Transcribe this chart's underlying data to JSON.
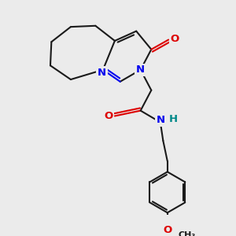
{
  "background_color": "#ebebeb",
  "bond_color": "#1a1a1a",
  "nitrogen_color": "#0000ee",
  "oxygen_color": "#dd0000",
  "h_color": "#008888",
  "line_width": 1.5,
  "font_size": 8.5,
  "dpi": 100,
  "figsize": [
    3.0,
    3.0
  ],
  "xlim": [
    0,
    10
  ],
  "ylim": [
    0,
    10
  ]
}
